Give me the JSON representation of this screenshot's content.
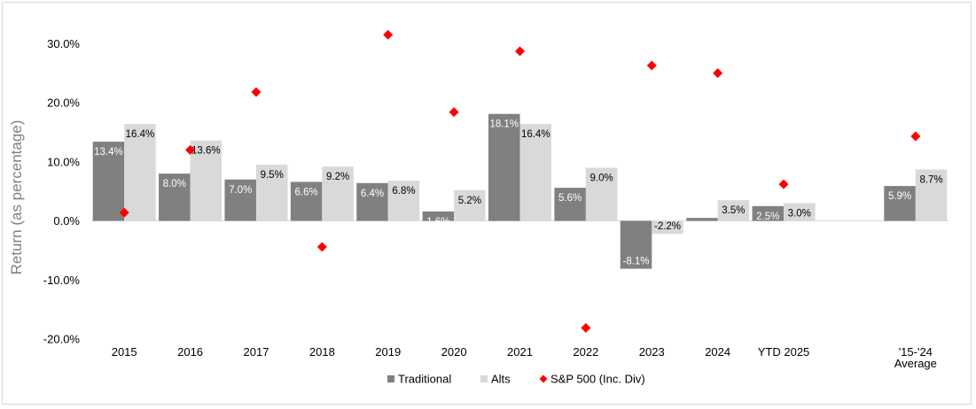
{
  "chart_data": {
    "type": "bar",
    "ylabel": "Return (as percentage)",
    "ylim": [
      -20,
      30
    ],
    "yticks": [
      "-20.0%",
      "-10.0%",
      "0.0%",
      "10.0%",
      "20.0%",
      "30.0%"
    ],
    "grid": false,
    "legend_position": "bottom",
    "categories": [
      "2015",
      "2016",
      "2017",
      "2018",
      "2019",
      "2020",
      "2021",
      "2022",
      "2023",
      "2024",
      "YTD 2025",
      "",
      "'15-'24\nAverage"
    ],
    "series": [
      {
        "name": "Traditional",
        "type": "bar",
        "color": "#808080",
        "values": [
          13.4,
          8.0,
          7.0,
          6.6,
          6.4,
          1.6,
          18.1,
          5.6,
          -8.1,
          0.5,
          2.5,
          null,
          5.9
        ],
        "labels": [
          "13.4%",
          "8.0%",
          "7.0%",
          "6.6%",
          "6.4%",
          "1.6%",
          "18.1%",
          "5.6%",
          "-8.1%",
          "0.5%",
          "2.5%",
          "",
          "5.9%"
        ]
      },
      {
        "name": "Alts",
        "type": "bar",
        "color": "#d9d9d9",
        "values": [
          16.4,
          13.6,
          9.5,
          9.2,
          6.8,
          5.2,
          16.4,
          9.0,
          -2.2,
          3.5,
          3.0,
          null,
          8.7
        ],
        "labels": [
          "16.4%",
          "13.6%",
          "9.5%",
          "9.2%",
          "6.8%",
          "5.2%",
          "16.4%",
          "9.0%",
          "-2.2%",
          "3.5%",
          "3.0%",
          "",
          "8.7%"
        ]
      },
      {
        "name": "S&P 500 (Inc. Div)",
        "type": "scatter",
        "marker": "diamond",
        "color": "#ff0000",
        "values": [
          1.4,
          12.0,
          21.8,
          -4.4,
          31.5,
          18.4,
          28.7,
          -18.1,
          26.3,
          25.0,
          6.2,
          null,
          14.3
        ]
      }
    ]
  }
}
